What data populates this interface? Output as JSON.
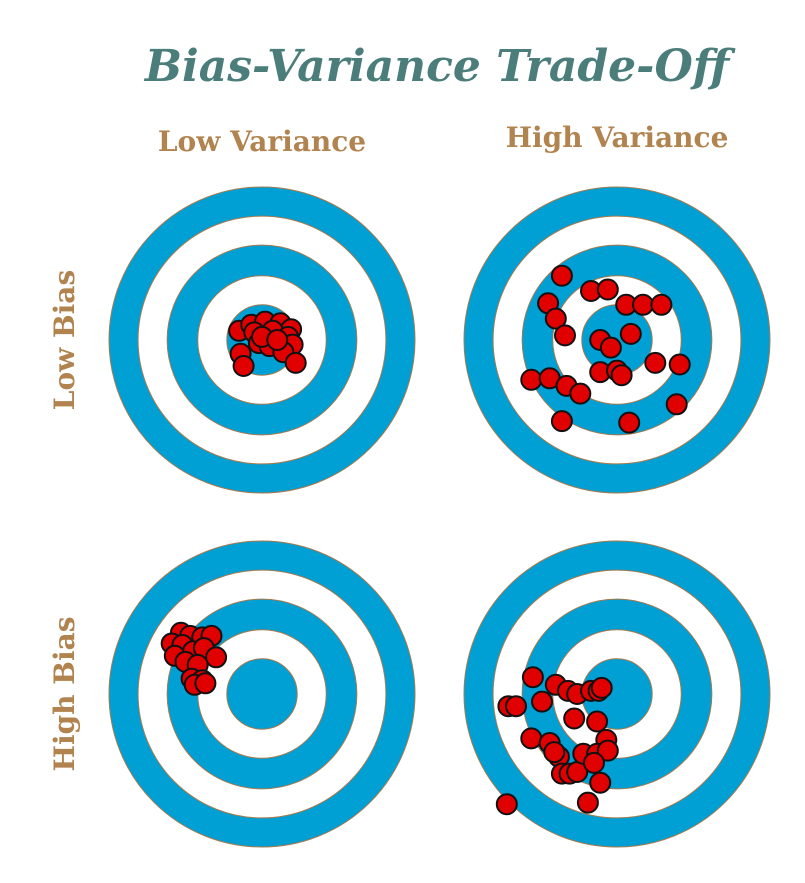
{
  "title": "Bias-Variance Trade-Off",
  "columns": [
    "Low Variance",
    "High Variance"
  ],
  "rows": [
    "Low Bias",
    "High Bias"
  ],
  "colors": {
    "title": "#4b7d7b",
    "labels": "#b0834f",
    "ring_blue": "#009fd4",
    "ring_white": "#ffffff",
    "ring_stroke": "#a57a4e",
    "dot_fill": "#e00000",
    "dot_stroke": "#111111"
  },
  "targets": [
    {
      "row": "Low Bias",
      "column": "Low Variance",
      "shots": [
        [
          -0.15,
          0.06
        ],
        [
          -0.07,
          0.1
        ],
        [
          0.02,
          0.12
        ],
        [
          0.12,
          0.11
        ],
        [
          0.19,
          0.07
        ],
        [
          -0.05,
          0.05
        ],
        [
          0.07,
          0.06
        ],
        [
          0.17,
          0.02
        ],
        [
          0.2,
          -0.03
        ],
        [
          -0.14,
          -0.09
        ],
        [
          -0.02,
          -0.02
        ],
        [
          0.05,
          -0.04
        ],
        [
          0.14,
          -0.08
        ],
        [
          -0.12,
          -0.17
        ],
        [
          0.22,
          -0.15
        ],
        [
          0.0,
          0.02
        ],
        [
          0.1,
          0.0
        ]
      ]
    },
    {
      "row": "Low Bias",
      "column": "High Variance",
      "shots": [
        [
          -0.36,
          0.42
        ],
        [
          -0.17,
          0.32
        ],
        [
          -0.06,
          0.33
        ],
        [
          0.06,
          0.23
        ],
        [
          0.17,
          0.23
        ],
        [
          0.29,
          0.23
        ],
        [
          -0.45,
          0.24
        ],
        [
          -0.4,
          0.14
        ],
        [
          -0.34,
          0.03
        ],
        [
          -0.11,
          0.0
        ],
        [
          -0.04,
          -0.05
        ],
        [
          0.09,
          0.04
        ],
        [
          0.25,
          -0.15
        ],
        [
          0.41,
          -0.16
        ],
        [
          -0.56,
          -0.26
        ],
        [
          -0.44,
          -0.25
        ],
        [
          -0.33,
          -0.3
        ],
        [
          -0.24,
          -0.35
        ],
        [
          -0.11,
          -0.21
        ],
        [
          0.0,
          -0.2
        ],
        [
          0.03,
          -0.23
        ],
        [
          -0.36,
          -0.53
        ],
        [
          0.08,
          -0.54
        ],
        [
          0.39,
          -0.42
        ]
      ]
    },
    {
      "row": "High Bias",
      "column": "Low Variance",
      "shots": [
        [
          -0.53,
          0.4
        ],
        [
          -0.47,
          0.38
        ],
        [
          -0.39,
          0.37
        ],
        [
          -0.33,
          0.38
        ],
        [
          -0.59,
          0.33
        ],
        [
          -0.52,
          0.32
        ],
        [
          -0.45,
          0.28
        ],
        [
          -0.38,
          0.3
        ],
        [
          -0.3,
          0.24
        ],
        [
          -0.57,
          0.25
        ],
        [
          -0.5,
          0.21
        ],
        [
          -0.42,
          0.19
        ],
        [
          -0.46,
          0.1
        ],
        [
          -0.39,
          0.09
        ],
        [
          -0.44,
          0.06
        ],
        [
          -0.37,
          0.07
        ]
      ]
    },
    {
      "row": "High Bias",
      "column": "High Variance",
      "shots": [
        [
          -0.71,
          -0.08
        ],
        [
          -0.66,
          -0.08
        ],
        [
          -0.56,
          -0.29
        ],
        [
          -0.49,
          -0.05
        ],
        [
          -0.4,
          0.06
        ],
        [
          -0.32,
          0.02
        ],
        [
          -0.28,
          -0.16
        ],
        [
          -0.26,
          0.0
        ],
        [
          -0.17,
          0.02
        ],
        [
          -0.12,
          0.02
        ],
        [
          -0.1,
          0.04
        ],
        [
          -0.55,
          0.11
        ],
        [
          -0.13,
          -0.18
        ],
        [
          -0.44,
          -0.32
        ],
        [
          -0.38,
          -0.41
        ],
        [
          -0.36,
          -0.52
        ],
        [
          -0.31,
          -0.52
        ],
        [
          -0.26,
          -0.51
        ],
        [
          -0.22,
          -0.39
        ],
        [
          -0.41,
          -0.38
        ],
        [
          -0.07,
          -0.3
        ],
        [
          -0.13,
          -0.39
        ],
        [
          -0.06,
          -0.37
        ],
        [
          -0.15,
          -0.45
        ],
        [
          -0.11,
          -0.58
        ],
        [
          -0.19,
          -0.71
        ],
        [
          -0.72,
          -0.72
        ]
      ]
    }
  ]
}
